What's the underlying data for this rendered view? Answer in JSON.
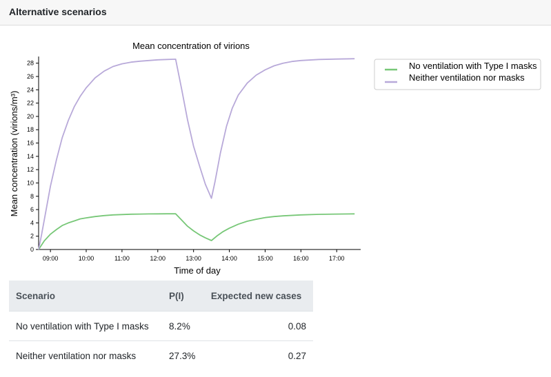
{
  "header": {
    "title": "Alternative scenarios"
  },
  "chart_data": {
    "type": "line",
    "title": "Mean concentration of virions",
    "xlabel": "Time of day",
    "ylabel": "Mean concentration (virions/m³)",
    "xlim": [
      8.67,
      17.67
    ],
    "ylim": [
      0,
      29
    ],
    "x_ticks": [
      "09:00",
      "10:00",
      "11:00",
      "12:00",
      "13:00",
      "14:00",
      "15:00",
      "16:00",
      "17:00"
    ],
    "x_tick_values": [
      9,
      10,
      11,
      12,
      13,
      14,
      15,
      16,
      17
    ],
    "y_ticks": [
      0,
      2,
      4,
      6,
      8,
      10,
      12,
      14,
      16,
      18,
      20,
      22,
      24,
      26,
      28
    ],
    "legend_position": "top-right",
    "series": [
      {
        "name": "No ventilation with Type I masks",
        "color": "#77c777",
        "x": [
          8.67,
          8.83,
          9.0,
          9.17,
          9.33,
          9.5,
          9.67,
          9.83,
          10.0,
          10.25,
          10.5,
          10.75,
          11.0,
          11.25,
          11.5,
          11.75,
          12.0,
          12.25,
          12.5,
          12.67,
          12.83,
          13.0,
          13.17,
          13.33,
          13.5,
          13.67,
          13.83,
          14.0,
          14.25,
          14.5,
          14.75,
          15.0,
          15.25,
          15.5,
          16.0,
          16.5,
          17.0,
          17.5
        ],
        "values": [
          0,
          1.3,
          2.3,
          3.0,
          3.6,
          4.0,
          4.3,
          4.6,
          4.75,
          4.95,
          5.1,
          5.2,
          5.25,
          5.3,
          5.32,
          5.34,
          5.35,
          5.36,
          5.37,
          4.4,
          3.5,
          2.8,
          2.2,
          1.75,
          1.35,
          2.1,
          2.7,
          3.2,
          3.8,
          4.25,
          4.55,
          4.8,
          4.95,
          5.05,
          5.2,
          5.28,
          5.32,
          5.35
        ]
      },
      {
        "name": "Neither ventilation nor masks",
        "color": "#b8a9d9",
        "x": [
          8.67,
          8.75,
          8.83,
          9.0,
          9.17,
          9.33,
          9.5,
          9.67,
          9.83,
          10.0,
          10.25,
          10.5,
          10.75,
          11.0,
          11.25,
          11.5,
          11.75,
          12.0,
          12.25,
          12.5,
          12.67,
          12.83,
          13.0,
          13.17,
          13.33,
          13.5,
          13.6,
          13.75,
          13.92,
          14.08,
          14.25,
          14.5,
          14.75,
          15.0,
          15.25,
          15.5,
          15.75,
          16.0,
          16.5,
          17.0,
          17.5
        ],
        "values": [
          0,
          2.2,
          4.5,
          9.5,
          13.5,
          16.8,
          19.4,
          21.5,
          23.0,
          24.3,
          25.8,
          26.8,
          27.5,
          27.9,
          28.15,
          28.3,
          28.4,
          28.5,
          28.55,
          28.6,
          24.0,
          19.5,
          15.5,
          12.5,
          9.8,
          7.7,
          10.2,
          14.5,
          18.5,
          21.2,
          23.2,
          25.0,
          26.2,
          27.0,
          27.6,
          28.0,
          28.25,
          28.4,
          28.55,
          28.62,
          28.67
        ]
      }
    ]
  },
  "table": {
    "headers": [
      "Scenario",
      "P(I)",
      "Expected new cases"
    ],
    "rows": [
      [
        "No ventilation with Type I masks",
        "8.2%",
        "0.08"
      ],
      [
        "Neither ventilation nor masks",
        "27.3%",
        "0.27"
      ]
    ]
  }
}
